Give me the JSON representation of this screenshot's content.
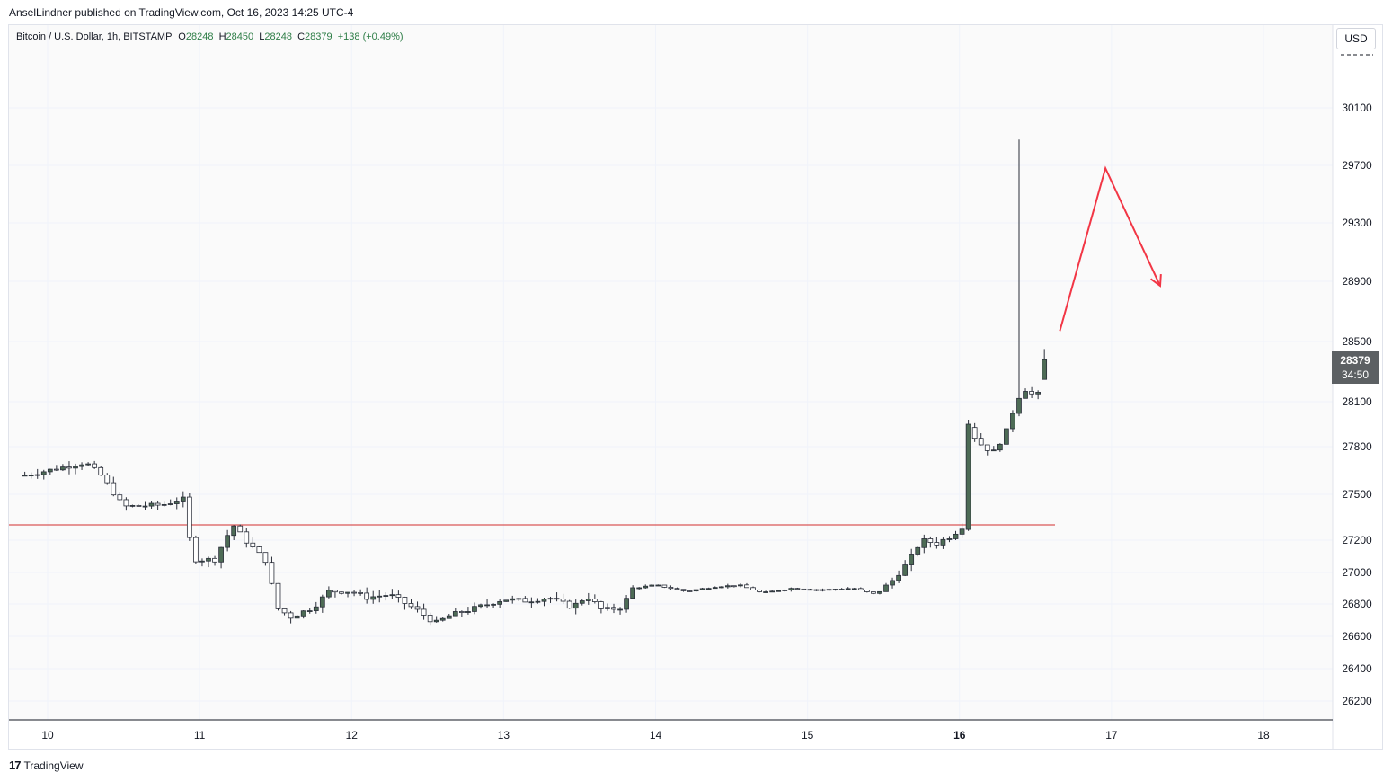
{
  "header": {
    "publish_line": "AnselLindner published on TradingView.com, Oct 16, 2023 14:25 UTC-4"
  },
  "legend": {
    "symbol": "Bitcoin / U.S. Dollar, 1h, BITSTAMP",
    "open_label": "O",
    "open": "28248",
    "high_label": "H",
    "high": "28450",
    "low_label": "L",
    "low": "28248",
    "close_label": "C",
    "close": "28379",
    "change": "+138 (+0.49%)"
  },
  "currency_button": "USD",
  "last_price": {
    "value": "28379",
    "countdown": "34:50"
  },
  "footer": {
    "brand": "TradingView",
    "logo_glyph": "17"
  },
  "colors": {
    "up": "#4d6b55",
    "down": "#ffffff",
    "wick": "#2a2e39",
    "level_line": "#d32f2f",
    "arrow": "#f23645",
    "grid": "#f0f3fa",
    "plot_bg": "#fafafa"
  },
  "chart_data": {
    "type": "candlestick",
    "title": "Bitcoin / U.S. Dollar, 1h, BITSTAMP",
    "xlabel": "",
    "ylabel": "",
    "ylim": [
      26050,
      30450
    ],
    "y_ticks": [
      26200,
      26400,
      26600,
      26800,
      27000,
      27200,
      27500,
      27800,
      28100,
      28500,
      28900,
      29300,
      29700,
      30100
    ],
    "x_ticks": [
      {
        "label": "10",
        "day": 10,
        "bold": false
      },
      {
        "label": "11",
        "day": 11,
        "bold": false
      },
      {
        "label": "12",
        "day": 12,
        "bold": false
      },
      {
        "label": "13",
        "day": 13,
        "bold": false
      },
      {
        "label": "14",
        "day": 14,
        "bold": false
      },
      {
        "label": "15",
        "day": 15,
        "bold": false
      },
      {
        "label": "16",
        "day": 16,
        "bold": true
      },
      {
        "label": "17",
        "day": 17,
        "bold": false
      },
      {
        "label": "18",
        "day": 18,
        "bold": false
      }
    ],
    "horizontal_level": 27300,
    "arrow_annotation": {
      "points": [
        [
          16.66,
          28570
        ],
        [
          16.96,
          29680
        ],
        [
          17.32,
          28870
        ]
      ]
    },
    "grid": true,
    "candles_sample": "hourly OHLC, Oct 9 ~21:00 to Oct 16 ~14:00",
    "candles": []
  }
}
